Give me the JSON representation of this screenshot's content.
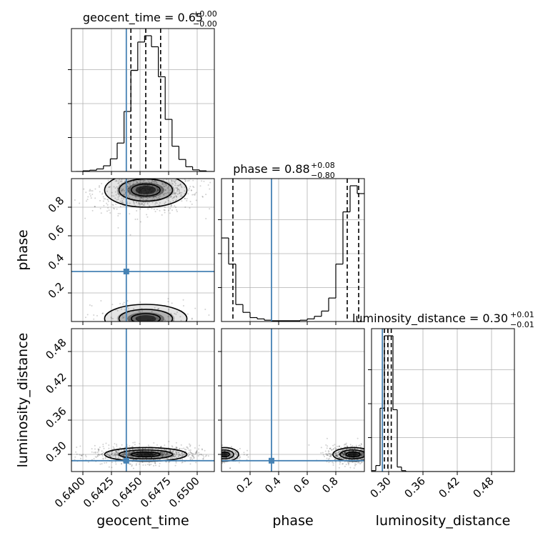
{
  "chart_data": {
    "type": "corner",
    "parameters": [
      "geocent_time",
      "phase",
      "luminosity_distance"
    ],
    "truths": {
      "geocent_time": 0.6438,
      "phase": 0.35,
      "luminosity_distance": 0.289
    },
    "titles": [
      {
        "param": "geocent_time",
        "text": "geocent_time = 0.65",
        "sup": "+0.00",
        "sub": "−0.00"
      },
      {
        "param": "phase",
        "text": "phase = 0.88",
        "sup": "+0.08",
        "sub": "−0.80"
      },
      {
        "param": "luminosity_distance",
        "text": "luminosity_distance = 0.30",
        "sup": "+0.01",
        "sub": "−0.01"
      }
    ],
    "axes": {
      "geocent_time": {
        "range": [
          0.639,
          0.6515
        ],
        "ticks": [
          0.64,
          0.6425,
          0.645,
          0.6475,
          0.65
        ],
        "tick_labels": [
          "0.6400",
          "0.6425",
          "0.6450",
          "0.6475",
          "0.6500"
        ],
        "label": "geocent_time"
      },
      "phase": {
        "range": [
          0.0,
          1.0
        ],
        "ticks": [
          0.2,
          0.4,
          0.6,
          0.8
        ],
        "tick_labels": [
          "0.2",
          "0.4",
          "0.6",
          "0.8"
        ],
        "label": "phase"
      },
      "luminosity_distance": {
        "range": [
          0.27,
          0.52
        ],
        "ticks": [
          0.3,
          0.36,
          0.42,
          0.48
        ],
        "tick_labels": [
          "0.30",
          "0.36",
          "0.42",
          "0.48"
        ],
        "label": "luminosity_distance"
      }
    },
    "histograms": {
      "geocent_time": {
        "bin_start": 0.6394,
        "bin_width": 0.0006,
        "counts": [
          0,
          2,
          4,
          8,
          18,
          40,
          90,
          190,
          320,
          410,
          430,
          395,
          300,
          165,
          80,
          38,
          15,
          5,
          2,
          0
        ],
        "quantiles": [
          0.6442,
          0.6455,
          0.6468
        ]
      },
      "phase": {
        "bin_start": 0.0,
        "bin_width": 0.05,
        "counts": [
          320,
          220,
          65,
          35,
          15,
          10,
          5,
          3,
          3,
          3,
          3,
          5,
          10,
          20,
          40,
          90,
          220,
          420,
          520,
          490
        ],
        "quantiles": [
          0.08,
          0.88,
          0.96
        ]
      },
      "luminosity_distance": {
        "bin_start": 0.27,
        "bin_width": 0.0075,
        "counts": [
          3,
          20,
          210,
          450,
          450,
          205,
          15,
          3,
          0,
          0,
          0,
          0,
          0,
          0,
          0,
          0,
          0,
          0,
          0,
          0,
          0,
          0,
          0,
          0,
          0,
          0,
          0,
          0,
          0,
          0,
          0,
          0,
          0,
          0
        ],
        "quantiles": [
          0.2925,
          0.2985,
          0.3045
        ]
      }
    },
    "scatter_2d": [
      {
        "x": "geocent_time",
        "y": "phase",
        "modes": [
          {
            "cx": 0.6455,
            "cy": 0.92,
            "sx": 0.0018,
            "sy": 0.06,
            "w": 0.85
          },
          {
            "cx": 0.6455,
            "cy": 0.02,
            "sx": 0.0018,
            "sy": 0.05,
            "w": 0.15
          }
        ]
      },
      {
        "x": "geocent_time",
        "y": "luminosity_distance",
        "modes": [
          {
            "cx": 0.6455,
            "cy": 0.3,
            "sx": 0.0018,
            "sy": 0.006,
            "w": 1.0
          }
        ]
      },
      {
        "x": "phase",
        "y": "luminosity_distance",
        "modes": [
          {
            "cx": 0.92,
            "cy": 0.3,
            "sx": 0.07,
            "sy": 0.006,
            "w": 0.8
          },
          {
            "cx": 0.02,
            "cy": 0.3,
            "sx": 0.05,
            "sy": 0.006,
            "w": 0.2
          }
        ]
      }
    ],
    "colors": {
      "truth": "#4682b4",
      "hist": "#000000",
      "grid": "#b0b0b0",
      "points": "#000000"
    },
    "grid": true
  }
}
